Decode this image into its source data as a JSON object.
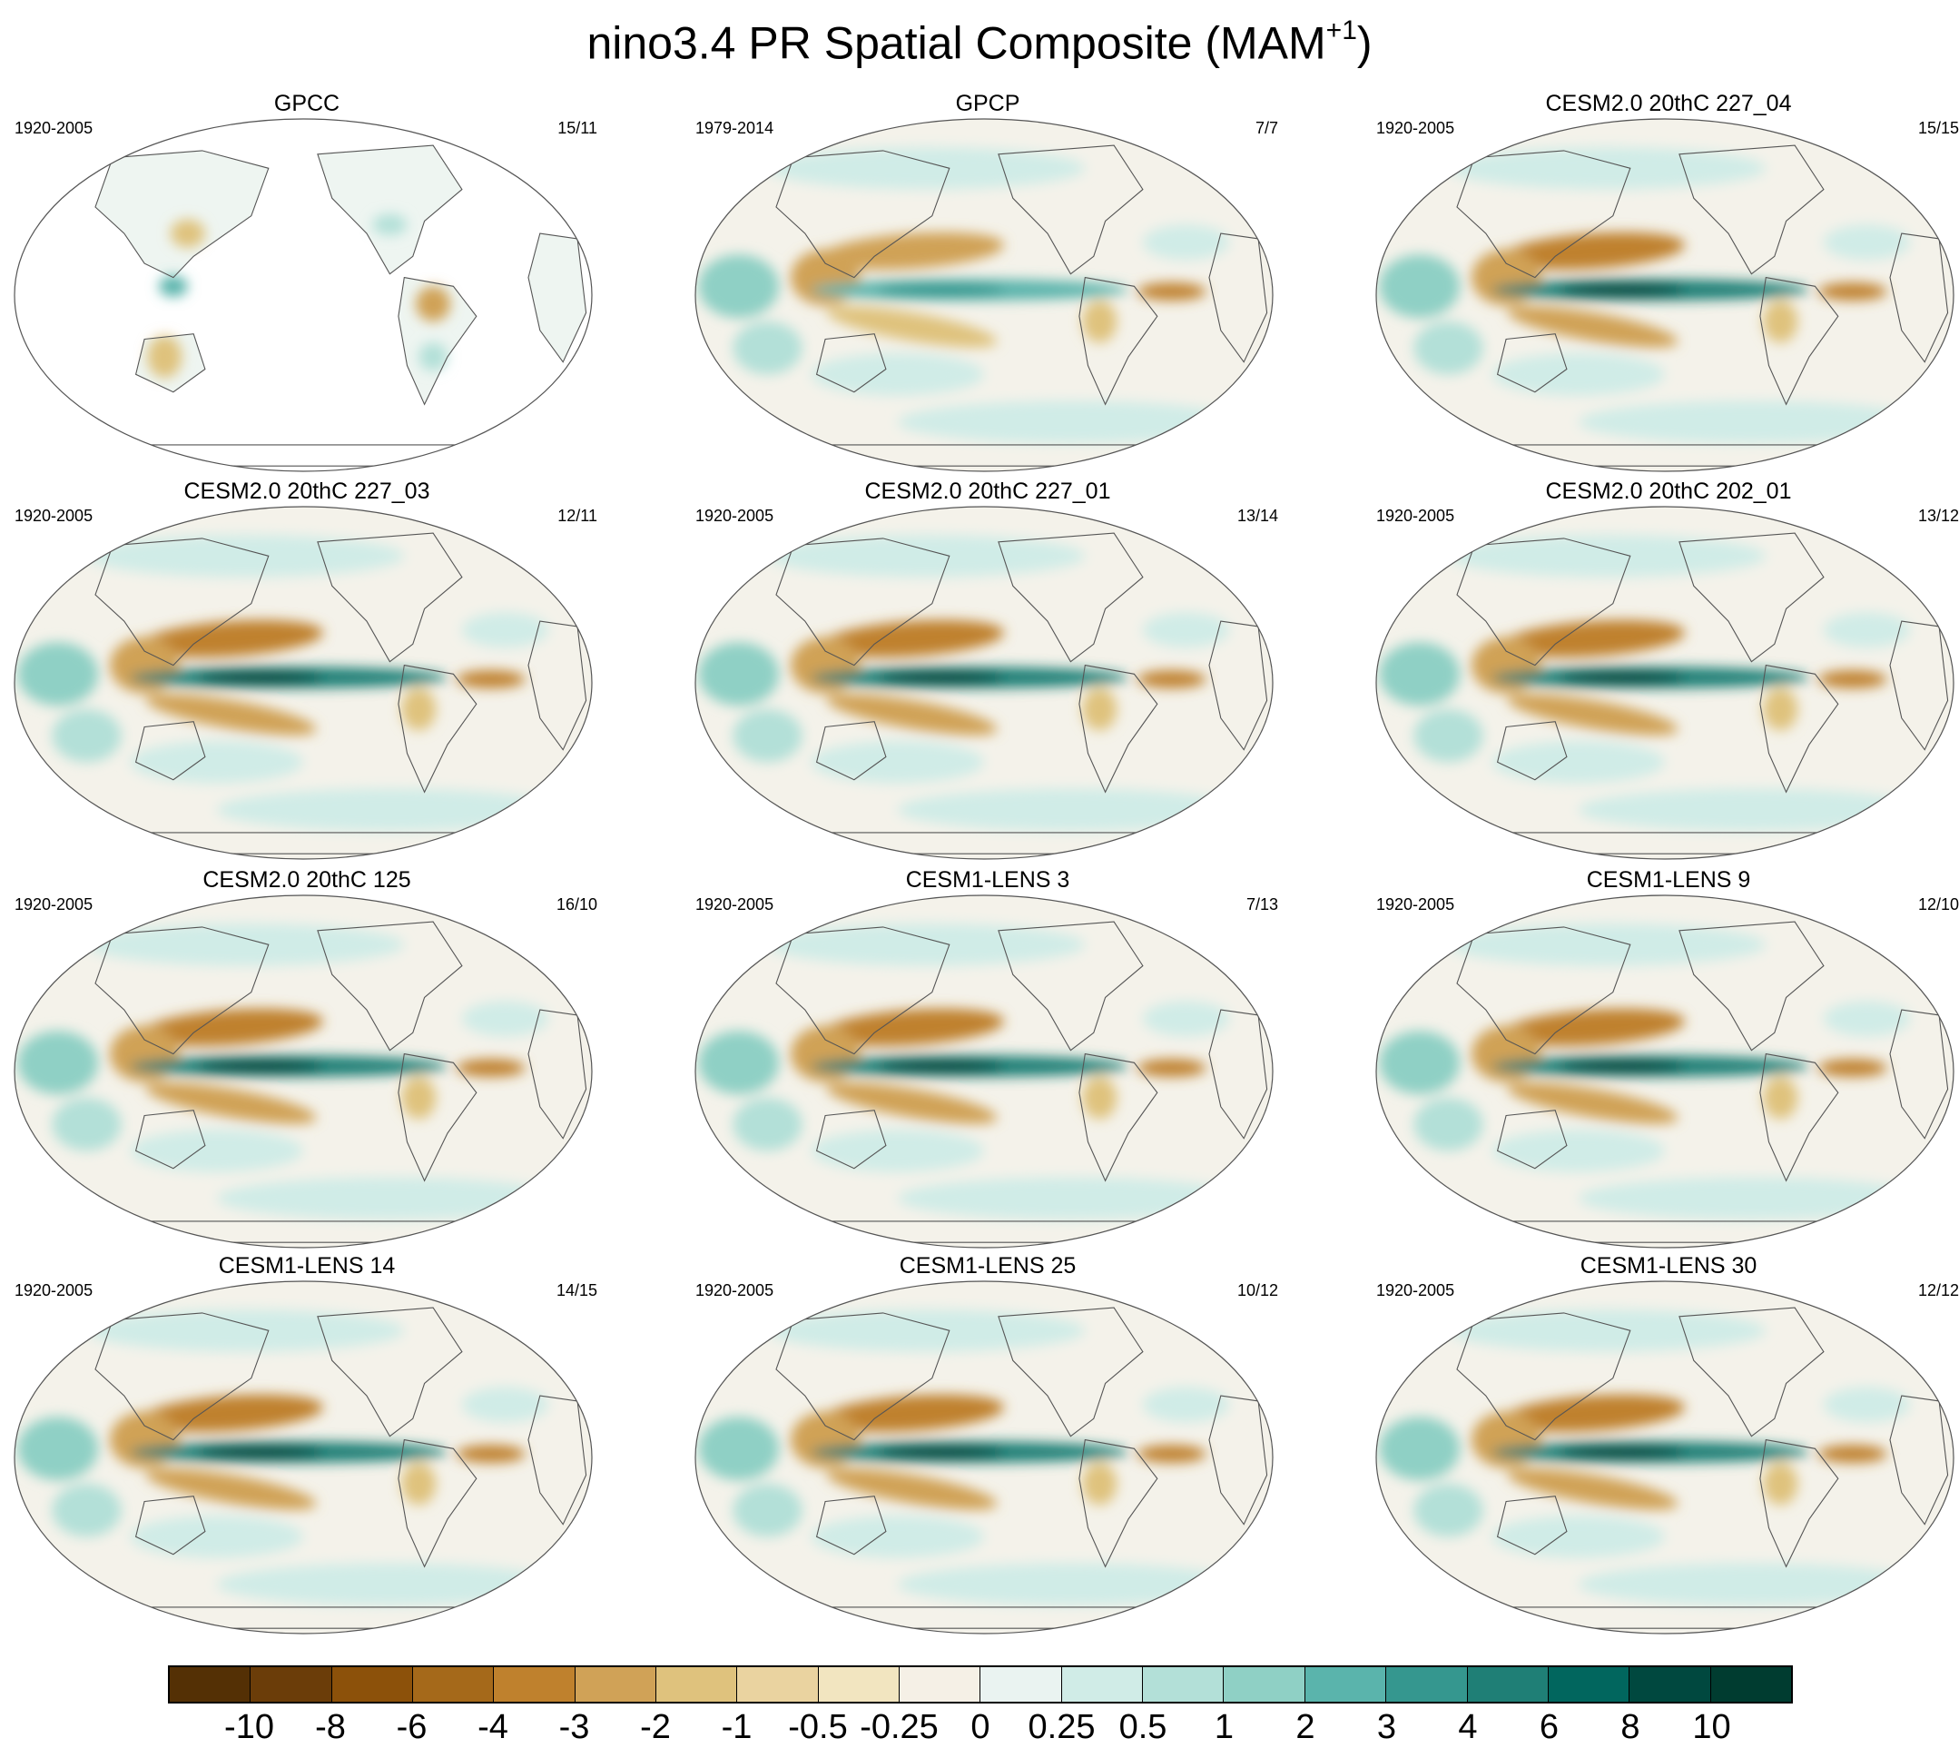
{
  "title": "nino3.4 PR Spatial Composite (MAM",
  "title_sup": "+1",
  "title_end": ")",
  "panels": [
    {
      "name": "GPCC",
      "period": "1920-2005",
      "count": "15/11",
      "style": "obs_land"
    },
    {
      "name": "GPCP",
      "period": "1979-2014",
      "count": "7/7",
      "style": "obs"
    },
    {
      "name": "CESM2.0 20thC 227_04",
      "period": "1920-2005",
      "count": "15/15",
      "style": "model"
    },
    {
      "name": "CESM2.0 20thC 227_03",
      "period": "1920-2005",
      "count": "12/11",
      "style": "model"
    },
    {
      "name": "CESM2.0 20thC 227_01",
      "period": "1920-2005",
      "count": "13/14",
      "style": "model"
    },
    {
      "name": "CESM2.0 20thC 202_01",
      "period": "1920-2005",
      "count": "13/12",
      "style": "model"
    },
    {
      "name": "CESM2.0 20thC 125",
      "period": "1920-2005",
      "count": "16/10",
      "style": "model"
    },
    {
      "name": "CESM1-LENS 3",
      "period": "1920-2005",
      "count": "7/13",
      "style": "model"
    },
    {
      "name": "CESM1-LENS 9",
      "period": "1920-2005",
      "count": "12/10",
      "style": "model"
    },
    {
      "name": "CESM1-LENS 14",
      "period": "1920-2005",
      "count": "14/15",
      "style": "model"
    },
    {
      "name": "CESM1-LENS 25",
      "period": "1920-2005",
      "count": "10/12",
      "style": "model"
    },
    {
      "name": "CESM1-LENS 30",
      "period": "1920-2005",
      "count": "12/12",
      "style": "model"
    }
  ],
  "colorbar": {
    "labels": [
      "-10",
      "-8",
      "-6",
      "-4",
      "-3",
      "-2",
      "-1",
      "-0.5",
      "-0.25",
      "0",
      "0.25",
      "0.5",
      "1",
      "2",
      "3",
      "4",
      "6",
      "8",
      "10"
    ],
    "colors": [
      "#543005",
      "#6b3d09",
      "#8c510a",
      "#a5691a",
      "#bf812d",
      "#d0a257",
      "#dfc27d",
      "#ead3a0",
      "#f2e5c0",
      "#f5f0e6",
      "#eaf3f1",
      "#d0ece7",
      "#b3e0d8",
      "#8fd0c5",
      "#5ab4ac",
      "#35978f",
      "#1f7f76",
      "#01665e",
      "#00483f",
      "#003c30"
    ]
  },
  "chart_data": {
    "type": "map",
    "variable": "PR",
    "title": "nino3.4 PR Spatial Composite (MAM+1)",
    "legend_levels": [
      -10,
      -8,
      -6,
      -4,
      -3,
      -2,
      -1,
      -0.5,
      -0.25,
      0,
      0.25,
      0.5,
      1,
      2,
      3,
      4,
      6,
      8,
      10
    ],
    "panels": [
      "GPCC",
      "GPCP",
      "CESM2.0 20thC 227_04",
      "CESM2.0 20thC 227_03",
      "CESM2.0 20thC 227_01",
      "CESM2.0 20thC 202_01",
      "CESM2.0 20thC 125",
      "CESM1-LENS 3",
      "CESM1-LENS 9",
      "CESM1-LENS 14",
      "CESM1-LENS 25",
      "CESM1-LENS 30"
    ]
  }
}
